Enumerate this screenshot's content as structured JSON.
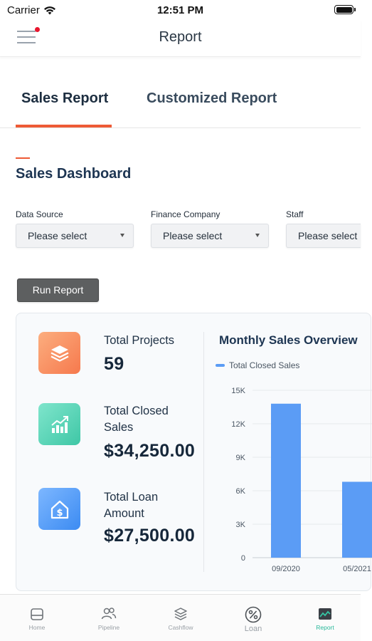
{
  "status_bar": {
    "carrier": "Carrier",
    "time": "12:51 PM"
  },
  "nav": {
    "title": "Report"
  },
  "tabs": [
    {
      "label": "Sales Report",
      "active": true
    },
    {
      "label": "Customized Report",
      "active": false
    }
  ],
  "dashboard": {
    "title": "Sales Dashboard"
  },
  "filters": [
    {
      "label": "Data Source",
      "value": "Please select"
    },
    {
      "label": "Finance Company",
      "value": "Please select"
    },
    {
      "label": "Staff",
      "value": "Please select"
    }
  ],
  "run_button": {
    "label": "Run Report"
  },
  "stats": [
    {
      "label": "Total Projects",
      "value": "59",
      "icon": "layers-icon"
    },
    {
      "label": "Total Closed Sales",
      "value": "$34,250.00",
      "icon": "growth-chart-icon"
    },
    {
      "label": "Total Loan Amount",
      "value": "$27,500.00",
      "icon": "house-dollar-icon"
    }
  ],
  "chart_data": {
    "type": "bar",
    "title": "Monthly Sales Overview",
    "categories": [
      "09/2020",
      "05/2021"
    ],
    "series": [
      {
        "name": "Total Closed Sales",
        "values": [
          13800,
          6800
        ]
      }
    ],
    "y_ticks": [
      "0",
      "3K",
      "6K",
      "9K",
      "12K",
      "15K"
    ],
    "ylim": [
      0,
      15000
    ],
    "grid": true,
    "legend_position": "top-left",
    "color": "#5b9cf5"
  },
  "tab_bar": [
    {
      "label": "Home",
      "icon": "home-icon",
      "active": false
    },
    {
      "label": "Pipeline",
      "icon": "users-icon",
      "active": false
    },
    {
      "label": "Cashflow",
      "icon": "stack-icon",
      "active": false
    },
    {
      "label": "Loan",
      "icon": "percent-icon",
      "active": false
    },
    {
      "label": "Report",
      "icon": "report-chart-icon",
      "active": true
    }
  ],
  "colors": {
    "accent": "#ee5a35",
    "bar": "#5b9cf5",
    "active_tab": "#28b89a",
    "notification": "#e8162d"
  }
}
